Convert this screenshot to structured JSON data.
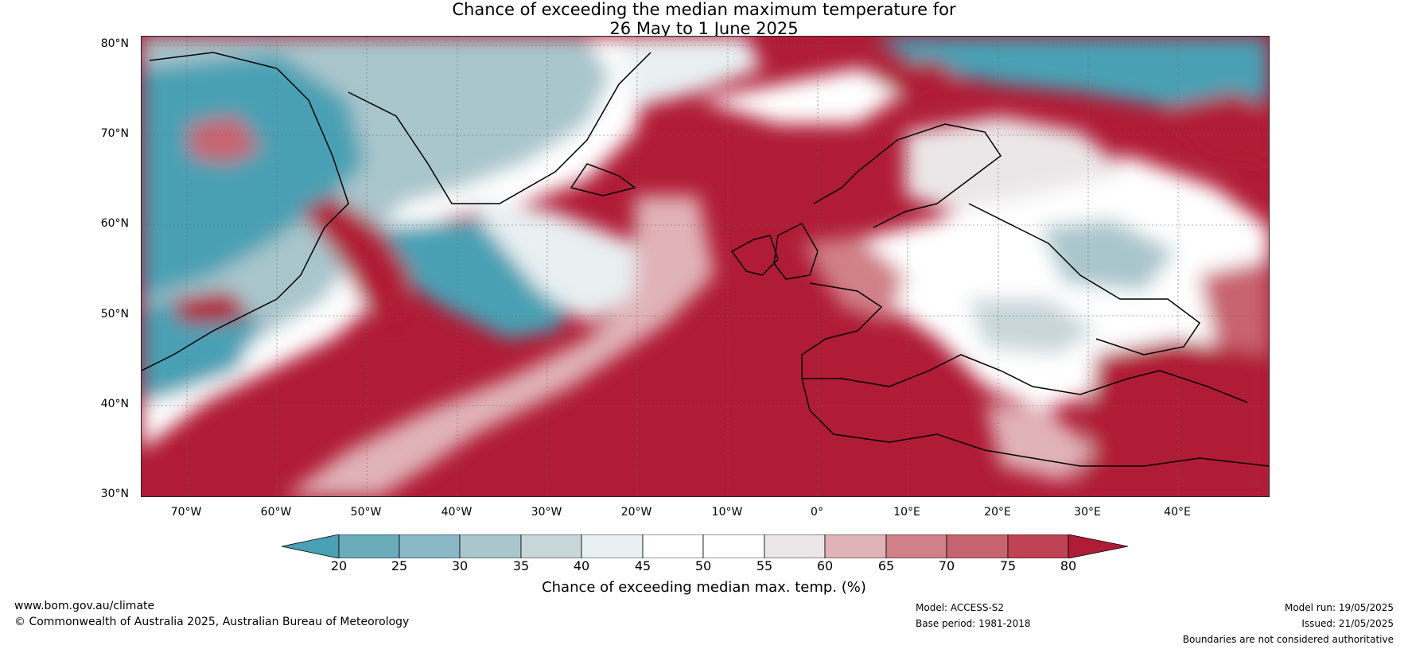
{
  "title": {
    "line1": "Chance of exceeding the median maximum temperature for",
    "line2": "26 May to 1 June 2025"
  },
  "map": {
    "lat_labels": [
      "80°N",
      "70°N",
      "60°N",
      "50°N",
      "40°N",
      "30°N"
    ],
    "lon_labels": [
      "70°W",
      "60°W",
      "50°W",
      "40°W",
      "30°W",
      "20°W",
      "10°W",
      "0°",
      "10°E",
      "20°E",
      "30°E",
      "40°E"
    ],
    "extent": {
      "lon_min": -75,
      "lon_max": 50,
      "lat_min": 30,
      "lat_max": 81
    }
  },
  "colorbar": {
    "ticks": [
      "20",
      "25",
      "30",
      "35",
      "40",
      "45",
      "50",
      "55",
      "60",
      "65",
      "70",
      "75",
      "80"
    ],
    "colors": [
      "#4aa0b4",
      "#6aacba",
      "#8ab8c6",
      "#a9c6cc",
      "#c8d6da",
      "#e8f0f2",
      "#ffffff",
      "#ffffff",
      "#ebe7e8",
      "#e0b3b8",
      "#d08088",
      "#c86370",
      "#c04355",
      "#b01b36"
    ],
    "label": "Chance of exceeding median max. temp. (%)"
  },
  "footer": {
    "url": "www.bom.gov.au/climate",
    "copyright": "© Commonwealth of Australia 2025, Australian Bureau of Meteorology",
    "model": "Model: ACCESS-S2",
    "base_period": "Base period: 1981-2018",
    "model_run": "Model run: 19/05/2025",
    "issued": "Issued: 21/05/2025",
    "disclaimer": "Boundaries are not considered authoritative"
  }
}
